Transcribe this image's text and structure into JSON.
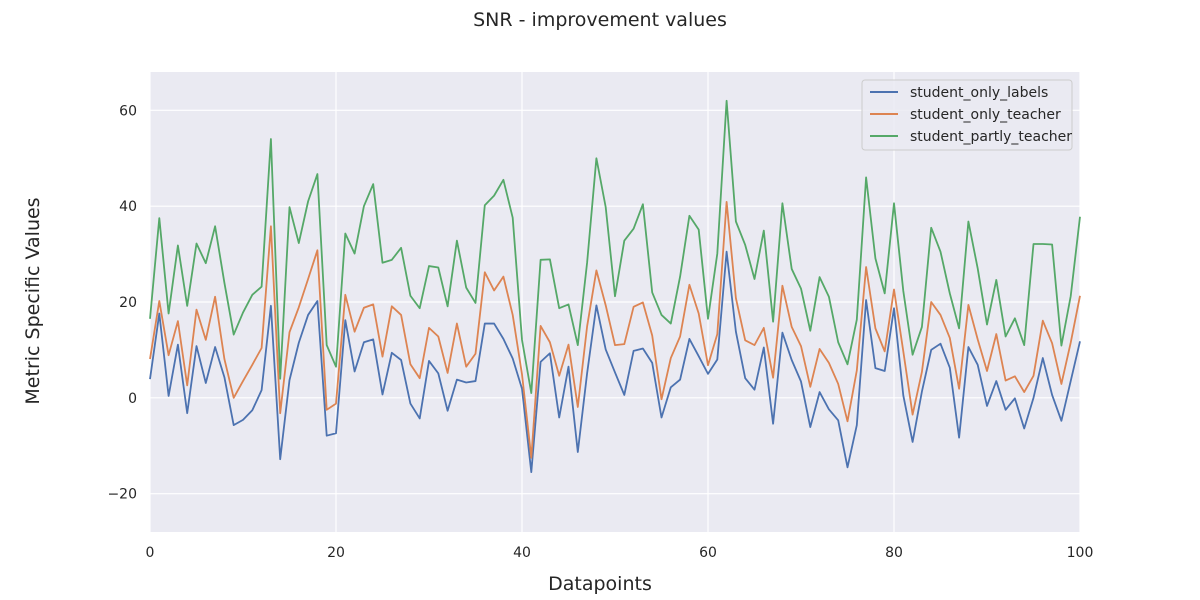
{
  "chart_data": {
    "type": "line",
    "title": "SNR - improvement values",
    "xlabel": "Datapoints",
    "ylabel": "Metric Specific Values",
    "xlim": [
      0,
      100
    ],
    "ylim": [
      -28,
      68
    ],
    "xticks": [
      0,
      20,
      40,
      60,
      80,
      100
    ],
    "yticks": [
      -20,
      0,
      20,
      40,
      60
    ],
    "ytick_labels": [
      "−20",
      "0",
      "20",
      "40",
      "60"
    ],
    "grid": true,
    "background": "#eaeaf2",
    "legend_position": "top-right",
    "series": [
      {
        "name": "student_only_labels",
        "color": "#4c72b0",
        "values": [
          3.9,
          17.6,
          0.4,
          11.1,
          -3.2,
          10.8,
          3.1,
          10.6,
          4.3,
          -5.7,
          -4.6,
          -2.6,
          1.6,
          19.2,
          -12.8,
          3.7,
          11.5,
          17.3,
          20.2,
          -7.9,
          -7.4,
          16.2,
          5.5,
          11.6,
          12.2,
          0.7,
          9.4,
          7.9,
          -1.2,
          -4.3,
          7.7,
          5.1,
          -2.7,
          3.8,
          3.2,
          3.5,
          15.5,
          15.5,
          12.3,
          8.2,
          1.9,
          -15.5,
          7.5,
          9.3,
          -4.1,
          6.5,
          -11.3,
          5.1,
          19.3,
          10.1,
          5.3,
          0.6,
          9.8,
          10.3,
          7.3,
          -4.1,
          2.2,
          3.8,
          12.3,
          8.7,
          5.0,
          8.0,
          30.5,
          13.8,
          4.1,
          1.7,
          10.5,
          -5.4,
          13.6,
          7.9,
          3.4,
          -6.1,
          1.2,
          -2.4,
          -4.7,
          -14.5,
          -5.7,
          20.4,
          6.2,
          5.6,
          18.7,
          0.5,
          -9.2,
          1.3,
          10.0,
          11.3,
          6.3,
          -8.3,
          10.6,
          6.9,
          -1.7,
          3.5,
          -2.5,
          -0.1,
          -6.4,
          0.0,
          8.3,
          0.6,
          -4.8,
          3.5,
          11.8
        ]
      },
      {
        "name": "student_only_teacher",
        "color": "#dd8452",
        "values": [
          8.1,
          20.2,
          8.9,
          16.0,
          2.6,
          18.4,
          12.1,
          21.1,
          8.1,
          0.0,
          3.5,
          6.9,
          10.4,
          35.8,
          -3.2,
          13.7,
          18.9,
          24.8,
          30.8,
          -2.5,
          -1.2,
          21.5,
          13.8,
          18.8,
          19.5,
          8.6,
          19.1,
          17.3,
          7.0,
          4.1,
          14.6,
          12.8,
          5.2,
          15.5,
          6.5,
          9.2,
          26.2,
          22.4,
          25.3,
          17.3,
          4.9,
          -12.5,
          15.0,
          11.6,
          4.6,
          11.1,
          -1.9,
          14.9,
          26.6,
          19.3,
          11.0,
          11.2,
          19.0,
          19.9,
          13.0,
          -0.3,
          8.3,
          12.8,
          23.6,
          17.6,
          6.8,
          13.3,
          40.9,
          20.8,
          12.0,
          11.0,
          14.6,
          4.2,
          23.4,
          14.8,
          10.8,
          2.3,
          10.2,
          7.3,
          2.9,
          -4.9,
          5.7,
          27.3,
          14.5,
          9.7,
          22.6,
          9.7,
          -3.5,
          5.4,
          20.0,
          17.3,
          12.5,
          1.9,
          19.4,
          12.2,
          5.6,
          13.3,
          3.6,
          4.5,
          1.2,
          4.6,
          16.1,
          11.4,
          2.9,
          11.5,
          21.3
        ]
      },
      {
        "name": "student_partly_teacher",
        "color": "#55a868",
        "values": [
          16.5,
          37.5,
          17.6,
          31.8,
          19.2,
          32.2,
          28.1,
          35.8,
          24.0,
          13.2,
          17.8,
          21.5,
          23.2,
          54.0,
          4.0,
          39.8,
          32.3,
          41.0,
          46.7,
          11.0,
          6.5,
          34.3,
          30.1,
          40.0,
          44.6,
          28.2,
          28.8,
          31.3,
          21.3,
          18.7,
          27.5,
          27.2,
          19.1,
          32.8,
          23.0,
          19.8,
          40.2,
          42.2,
          45.5,
          37.6,
          12.1,
          1.0,
          28.8,
          28.9,
          18.7,
          19.5,
          11.0,
          28.2,
          50.0,
          39.8,
          21.2,
          32.8,
          35.3,
          40.4,
          22.0,
          17.3,
          15.5,
          25.3,
          38.0,
          35.1,
          16.5,
          30.1,
          62.0,
          36.8,
          31.9,
          24.8,
          34.9,
          15.9,
          40.6,
          26.9,
          22.8,
          14.0,
          25.2,
          21.1,
          11.6,
          7.0,
          16.3,
          46.0,
          29.1,
          21.8,
          40.6,
          22.3,
          9.0,
          14.8,
          35.5,
          30.5,
          21.8,
          14.5,
          36.8,
          27.0,
          15.3,
          24.6,
          12.8,
          16.6,
          11.0,
          32.1,
          32.1,
          32.0,
          10.9,
          21.2,
          37.8
        ]
      }
    ]
  }
}
